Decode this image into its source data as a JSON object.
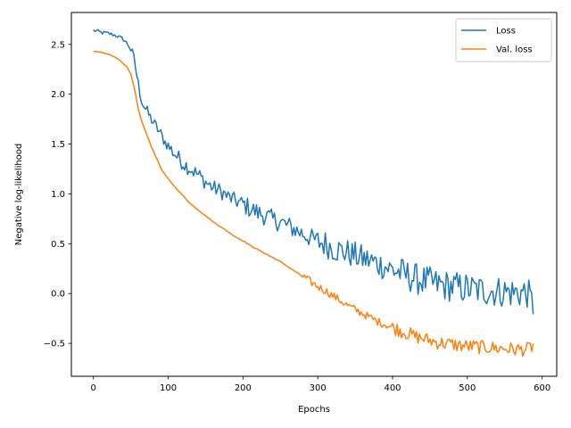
{
  "chart_data": {
    "type": "line",
    "title": "",
    "xlabel": "Epochs",
    "ylabel": "Negative log-likelihood",
    "xlim": [
      -29.5,
      619.5
    ],
    "ylim": [
      -0.83,
      2.82
    ],
    "xticks": [
      0,
      100,
      200,
      300,
      400,
      500,
      600
    ],
    "yticks": [
      -0.5,
      0.0,
      0.5,
      1.0,
      1.5,
      2.0,
      2.5
    ],
    "xtick_labels": [
      "0",
      "100",
      "200",
      "300",
      "400",
      "500",
      "600"
    ],
    "ytick_labels": [
      "−0.5",
      "0.0",
      "0.5",
      "1.0",
      "1.5",
      "2.0",
      "2.5"
    ],
    "grid": false,
    "legend_position": "top-right",
    "series": [
      {
        "name": "Loss",
        "color": "#1f77b4",
        "x": [
          0,
          10,
          20,
          30,
          40,
          45,
          50,
          55,
          60,
          65,
          70,
          75,
          80,
          85,
          90,
          95,
          100,
          110,
          120,
          130,
          140,
          150,
          160,
          170,
          180,
          190,
          200,
          210,
          220,
          230,
          240,
          250,
          260,
          270,
          280,
          290,
          300,
          310,
          320,
          330,
          340,
          350,
          360,
          370,
          380,
          390,
          400,
          410,
          420,
          430,
          440,
          450,
          460,
          470,
          480,
          490,
          500,
          510,
          520,
          530,
          540,
          550,
          560,
          570,
          580,
          589
        ],
        "values": [
          2.64,
          2.62,
          2.61,
          2.59,
          2.55,
          2.51,
          2.45,
          2.33,
          2.1,
          1.92,
          1.85,
          1.78,
          1.72,
          1.66,
          1.6,
          1.53,
          1.48,
          1.39,
          1.31,
          1.25,
          1.19,
          1.12,
          1.06,
          1.03,
          0.97,
          0.93,
          0.9,
          0.85,
          0.81,
          0.78,
          0.74,
          0.72,
          0.68,
          0.64,
          0.6,
          0.56,
          0.52,
          0.5,
          0.46,
          0.43,
          0.41,
          0.38,
          0.35,
          0.33,
          0.3,
          0.27,
          0.24,
          0.21,
          0.18,
          0.15,
          0.13,
          0.11,
          0.09,
          0.08,
          0.07,
          0.06,
          0.05,
          0.04,
          0.03,
          0.03,
          0.02,
          0.02,
          0.01,
          0.01,
          0.01,
          -0.14
        ]
      },
      {
        "name": "Val. loss",
        "color": "#ff7f0e",
        "x": [
          0,
          10,
          20,
          30,
          40,
          45,
          50,
          55,
          60,
          65,
          70,
          75,
          80,
          85,
          90,
          95,
          100,
          110,
          120,
          130,
          140,
          150,
          160,
          170,
          180,
          190,
          200,
          210,
          220,
          230,
          240,
          250,
          260,
          270,
          280,
          290,
          300,
          310,
          320,
          330,
          340,
          350,
          360,
          370,
          380,
          390,
          400,
          410,
          420,
          430,
          440,
          450,
          460,
          470,
          480,
          490,
          500,
          510,
          520,
          530,
          540,
          550,
          560,
          570,
          580,
          589
        ],
        "values": [
          2.43,
          2.42,
          2.4,
          2.37,
          2.31,
          2.27,
          2.2,
          2.05,
          1.85,
          1.72,
          1.62,
          1.52,
          1.43,
          1.35,
          1.26,
          1.2,
          1.15,
          1.06,
          0.98,
          0.9,
          0.84,
          0.78,
          0.72,
          0.67,
          0.62,
          0.57,
          0.53,
          0.48,
          0.44,
          0.4,
          0.36,
          0.32,
          0.27,
          0.22,
          0.17,
          0.12,
          0.07,
          0.03,
          -0.02,
          -0.07,
          -0.12,
          -0.16,
          -0.2,
          -0.24,
          -0.28,
          -0.31,
          -0.34,
          -0.37,
          -0.4,
          -0.43,
          -0.45,
          -0.47,
          -0.49,
          -0.5,
          -0.51,
          -0.52,
          -0.53,
          -0.53,
          -0.54,
          -0.54,
          -0.55,
          -0.55,
          -0.56,
          -0.56,
          -0.56,
          -0.52
        ]
      }
    ]
  }
}
